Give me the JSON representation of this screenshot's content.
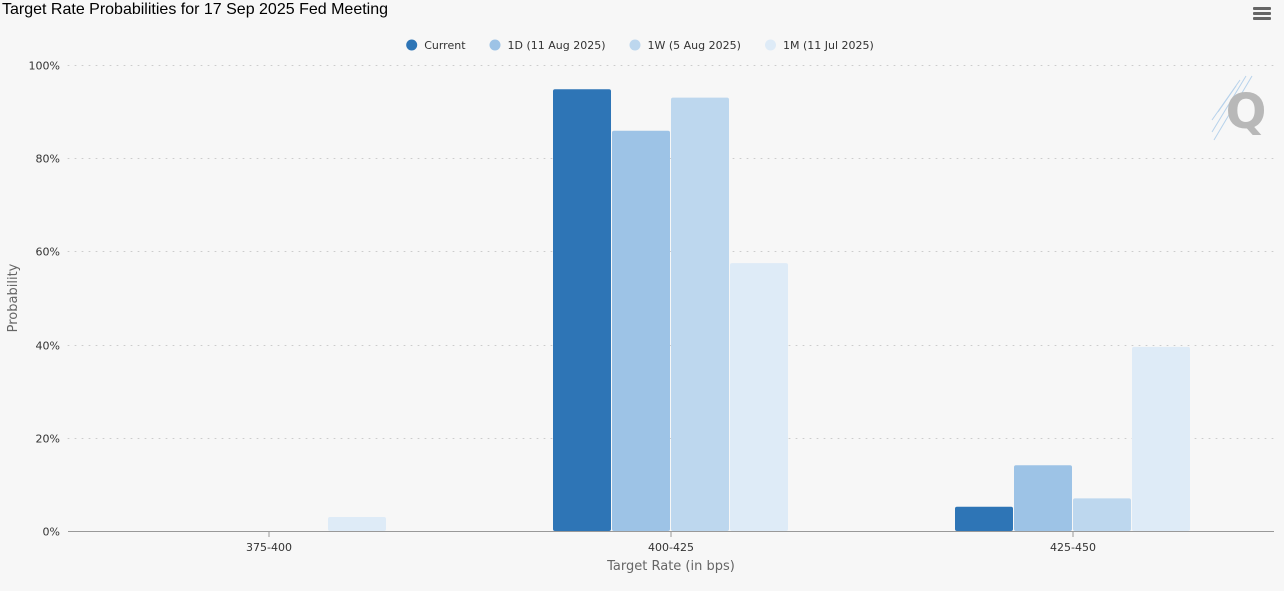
{
  "header": {
    "title": "Target Rate Probabilities for 17 Sep 2025 Fed Meeting",
    "menu_icon": "hamburger-menu-icon"
  },
  "colors": {
    "background": "#f7f7f7",
    "gridline": "#cccccc",
    "axis": "#999999"
  },
  "watermark": {
    "icon": "q-logo-icon",
    "letter": "Q"
  },
  "chart_data": {
    "type": "bar",
    "title": "Target Rate Probabilities for 17 Sep 2025 Fed Meeting",
    "xlabel": "Target Rate (in bps)",
    "ylabel": "Probability",
    "categories": [
      "375-400",
      "400-425",
      "425-450"
    ],
    "ylim": [
      0,
      100
    ],
    "yticks": [
      "0%",
      "20%",
      "40%",
      "60%",
      "80%",
      "100%"
    ],
    "ytick_values": [
      0,
      20,
      40,
      60,
      80,
      100
    ],
    "grid": true,
    "legend_position": "top-center",
    "series": [
      {
        "name": "Current",
        "color": "#2e75b6",
        "values": [
          0,
          94.8,
          5.2
        ]
      },
      {
        "name": "1D (11 Aug 2025)",
        "color": "#9dc3e6",
        "values": [
          0,
          85.9,
          14.1
        ]
      },
      {
        "name": "1W (5 Aug 2025)",
        "color": "#bdd7ee",
        "values": [
          0,
          93.0,
          7.0
        ]
      },
      {
        "name": "1M (11 Jul 2025)",
        "color": "#deebf7",
        "values": [
          3.0,
          57.5,
          39.5
        ]
      }
    ]
  }
}
